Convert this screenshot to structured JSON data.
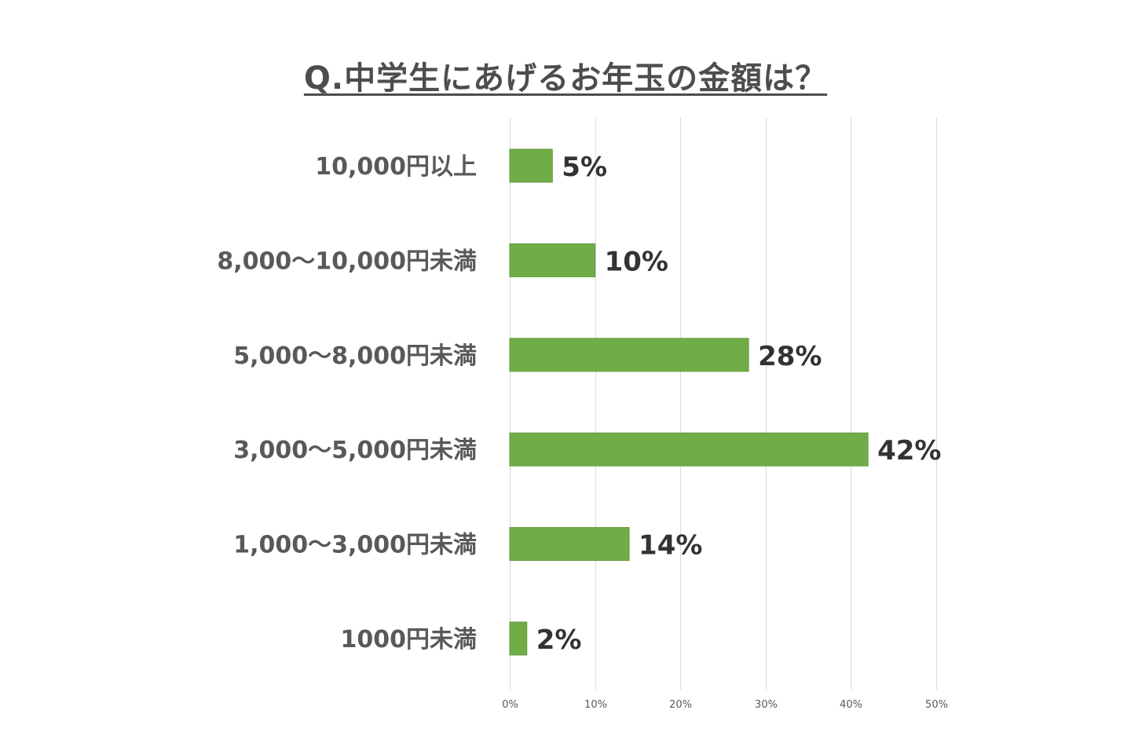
{
  "chart_data": {
    "type": "bar",
    "orientation": "horizontal",
    "title": "Q.中学生にあげるお年玉の金額は？",
    "categories": [
      "10,000円以上",
      "8,000～10,000円未満",
      "5,000～8,000円未満",
      "3,000～5,000円未満",
      "1,000～3,000円未満",
      "1000円未満"
    ],
    "values": [
      5,
      10,
      28,
      42,
      14,
      2
    ],
    "data_labels": [
      "5%",
      "10%",
      "28%",
      "42%",
      "14%",
      "2%"
    ],
    "xlim": [
      0,
      50
    ],
    "x_ticks": [
      0,
      10,
      20,
      30,
      40,
      50
    ],
    "x_tick_labels": [
      "0%",
      "10%",
      "20%",
      "30%",
      "40%",
      "50%"
    ],
    "grid": "vertical",
    "legend": "none",
    "colors": {
      "bar": "#70ad47",
      "bar_border": "#5f9a3a",
      "gridline": "#d9d9d9",
      "category_text": "#595959",
      "value_text": "#333333",
      "tick_text": "#595959",
      "title_text": "#4d4d4d"
    }
  }
}
